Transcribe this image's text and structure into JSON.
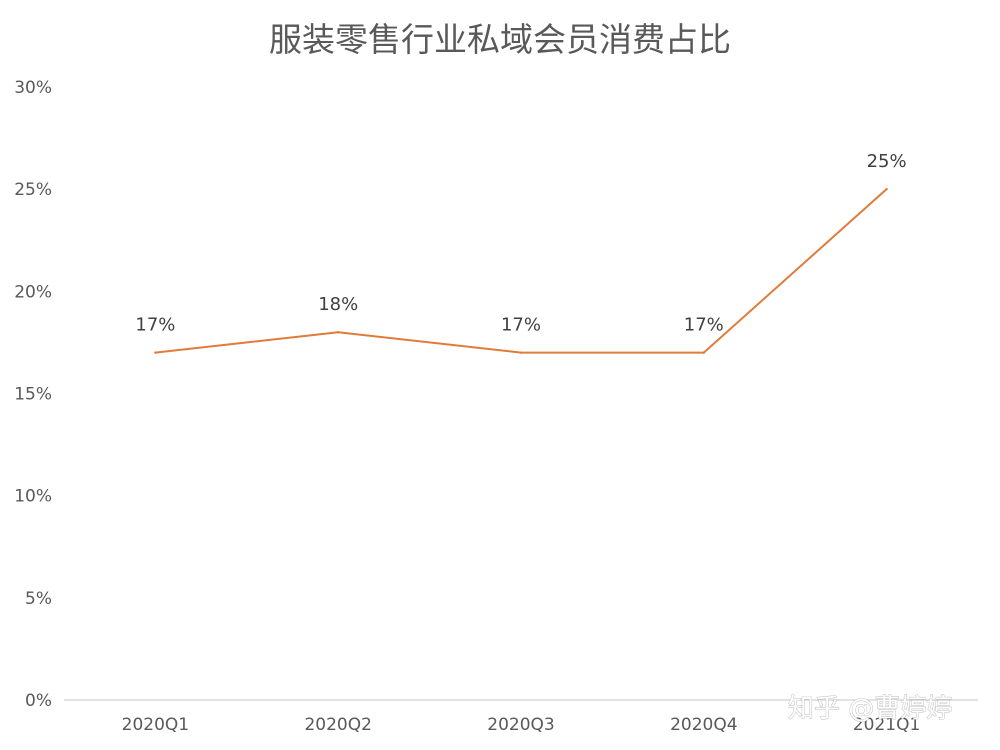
{
  "chart_data": {
    "type": "line",
    "title": "服装零售行业私域会员消费占比",
    "categories": [
      "2020Q1",
      "2020Q2",
      "2020Q3",
      "2020Q4",
      "2021Q1"
    ],
    "series": [
      {
        "values": [
          17,
          18,
          17,
          17,
          25
        ],
        "data_labels": [
          "17%",
          "18%",
          "17%",
          "17%",
          "25%"
        ],
        "color": "#e07b39"
      }
    ],
    "y_ticks": [
      0,
      5,
      10,
      15,
      20,
      25,
      30
    ],
    "y_tick_labels": [
      "0%",
      "5%",
      "10%",
      "15%",
      "20%",
      "25%",
      "30%"
    ],
    "ylim": [
      0,
      30
    ],
    "xlabel": "",
    "ylabel": "",
    "grid": false,
    "legend": "none"
  },
  "watermark": "知乎 @曹婷婷",
  "colors": {
    "line": "#e07b39",
    "text": "#595959",
    "axis": "#d9d9d9",
    "background": "#ffffff"
  }
}
